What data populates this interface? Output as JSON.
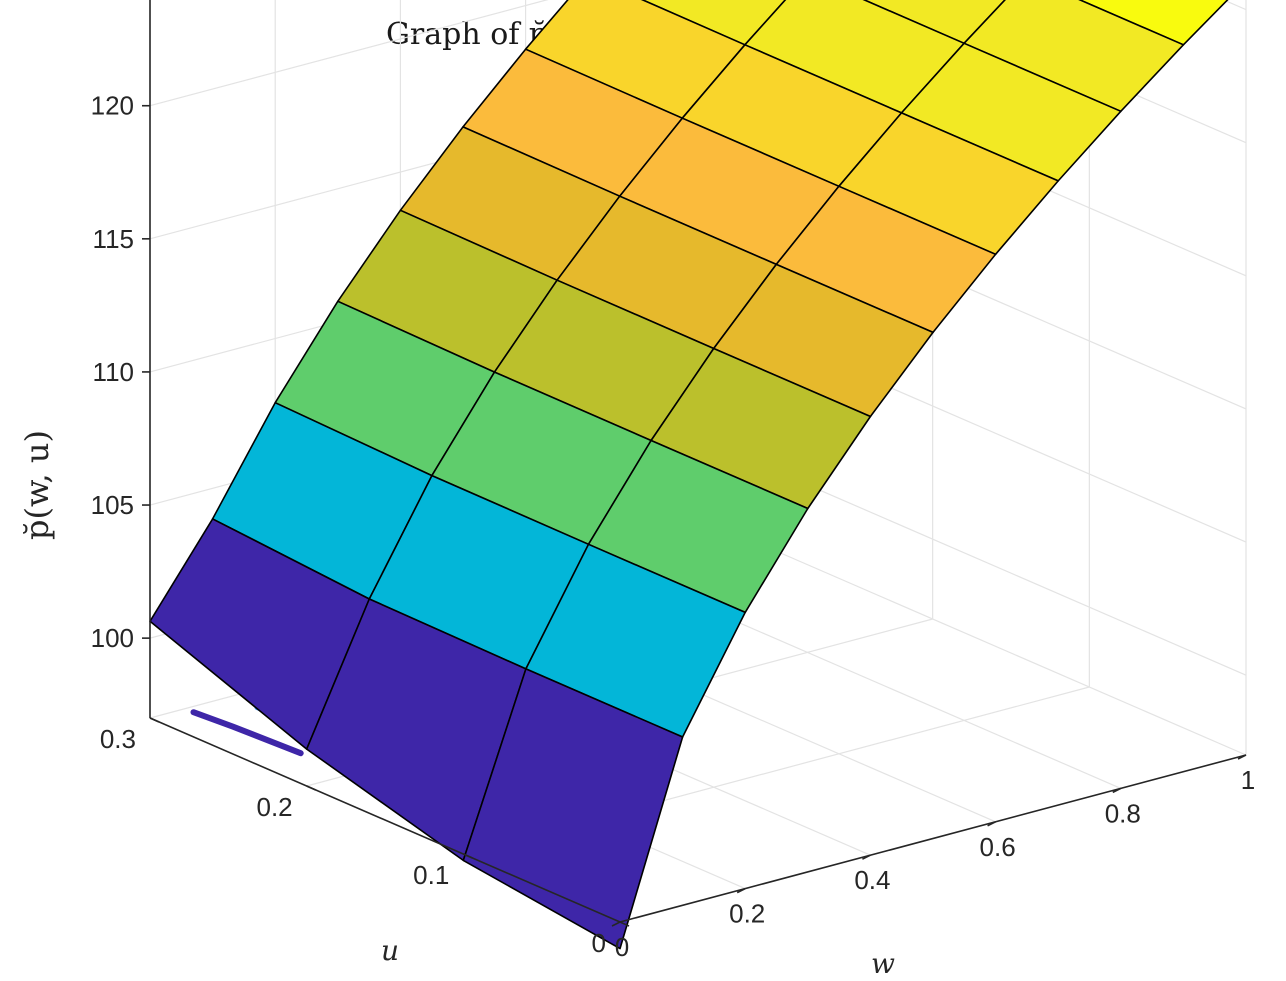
{
  "chart_data": {
    "type": "surface",
    "title": "Graph of p̆(w, u) = 96 ln(e + ∛(w² + u⁵))",
    "xlabel": "w",
    "ylabel": "u",
    "zlabel": "p̆(w, u)",
    "w": [
      0,
      0.1,
      0.2,
      0.3,
      0.4,
      0.5,
      0.6,
      0.7,
      0.8,
      0.9,
      1.0
    ],
    "u": [
      0,
      0.1,
      0.2,
      0.3
    ],
    "xlim": [
      0,
      1
    ],
    "ylim": [
      0,
      0.3
    ],
    "zlim": [
      97,
      126
    ],
    "xticks": [
      {
        "value": 0,
        "label": "0"
      },
      {
        "value": 0.2,
        "label": "0.2"
      },
      {
        "value": 0.4,
        "label": "0.4"
      },
      {
        "value": 0.6,
        "label": "0.6"
      },
      {
        "value": 0.8,
        "label": "0.8"
      },
      {
        "value": 1,
        "label": "1"
      }
    ],
    "yticks": [
      {
        "value": 0,
        "label": "0"
      },
      {
        "value": 0.1,
        "label": "0.1"
      },
      {
        "value": 0.2,
        "label": "0.2"
      },
      {
        "value": 0.3,
        "label": "0.3"
      }
    ],
    "zticks": [
      {
        "value": 100,
        "label": "100"
      },
      {
        "value": 105,
        "label": "105"
      },
      {
        "value": 110,
        "label": "110"
      },
      {
        "value": 115,
        "label": "115"
      },
      {
        "value": 120,
        "label": "120"
      },
      {
        "value": 125,
        "label": "125"
      }
    ],
    "grid": true,
    "colormap": [
      "#3e26a8",
      "#2e87f7",
      "#03b6d8",
      "#5fcd6c",
      "#bbc02c",
      "#e6b92c",
      "#fbbb3c",
      "#f9d52b",
      "#f2e924",
      "#f9fb0e"
    ],
    "contour_levels": [
      {
        "level": 102,
        "color": "#3e26a8"
      },
      {
        "level": 105,
        "color": "#2e87f7"
      },
      {
        "level": 108,
        "color": "#03b6d8"
      },
      {
        "level": 111,
        "color": "#5fcd6c"
      },
      {
        "level": 117,
        "color": "#e6b92c"
      },
      {
        "level": 123,
        "color": "#f9fb0e"
      }
    ]
  }
}
